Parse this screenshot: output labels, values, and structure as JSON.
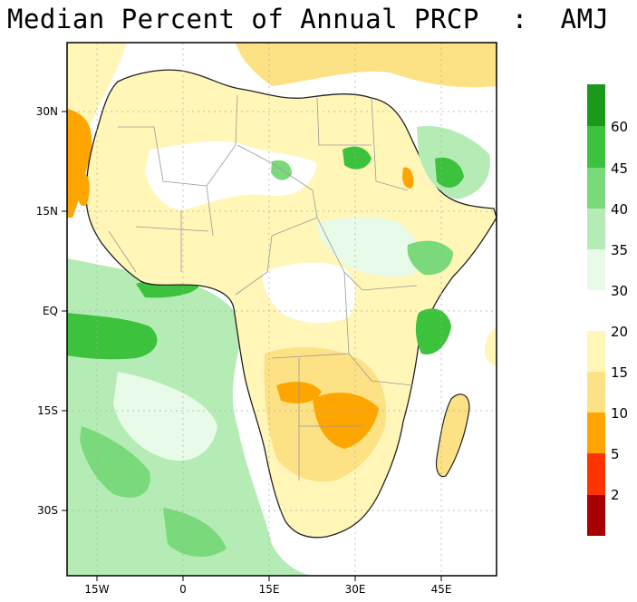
{
  "title": "Median Percent of Annual PRCP  :  AMJ",
  "axes": {
    "y_ticks": [
      "30N",
      "15N",
      "EQ",
      "15S",
      "30S"
    ],
    "x_ticks": [
      "15W",
      "0",
      "15E",
      "30E",
      "45E"
    ]
  },
  "colorbar": {
    "wet": [
      {
        "label": "60",
        "color": "#1a9a1a"
      },
      {
        "label": "45",
        "color": "#3cc23c"
      },
      {
        "label": "40",
        "color": "#7ad97a"
      },
      {
        "label": "35",
        "color": "#b5ecb5"
      },
      {
        "label": "30",
        "color": "#e8fbe8"
      }
    ],
    "dry": [
      {
        "label": "20",
        "color": "#fff6b8"
      },
      {
        "label": "15",
        "color": "#fde185"
      },
      {
        "label": "10",
        "color": "#ffa500"
      },
      {
        "label": "5",
        "color": "#ff3300"
      },
      {
        "label": "2",
        "color": "#a60000"
      }
    ]
  }
}
